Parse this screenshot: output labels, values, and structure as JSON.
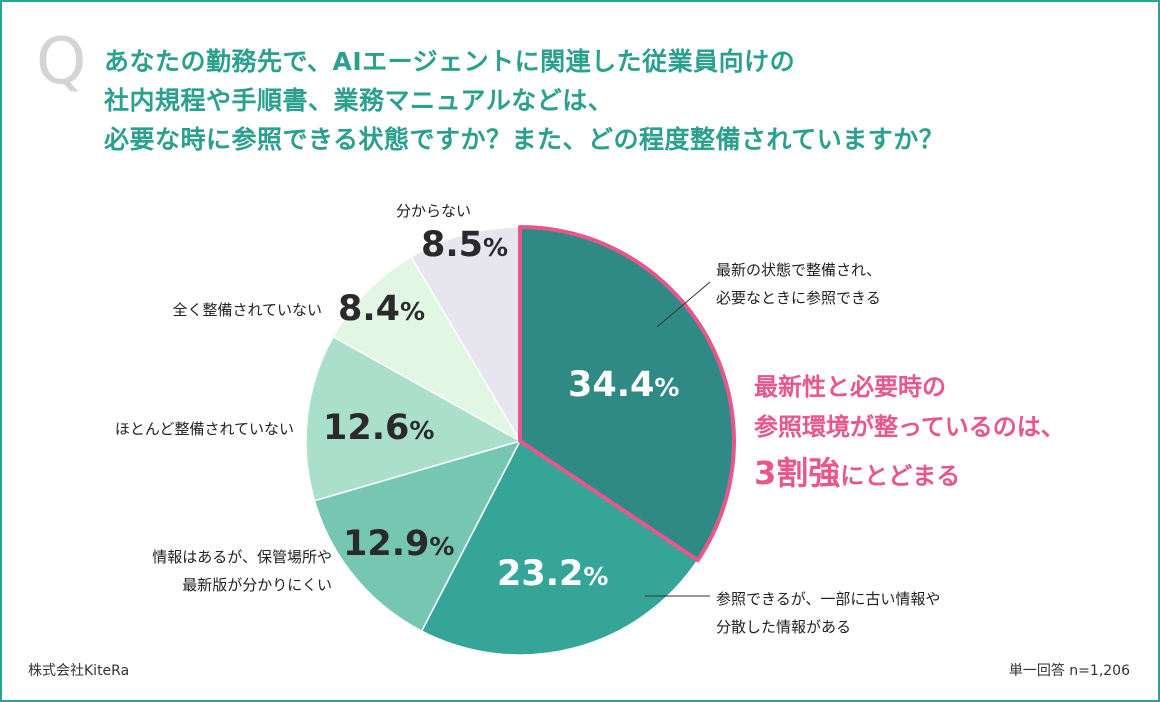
{
  "question": {
    "mark": "Q",
    "lines": [
      "あなたの勤務先で、AIエージェントに関連した従業員向けの",
      "社内規程や手順書、業務マニュアルなどは、",
      "必要な時に参照できる状態ですか？また、どの程度整備されていますか？"
    ]
  },
  "chart_data": {
    "type": "pie",
    "start": "top",
    "direction": "clockwise",
    "slices": [
      {
        "label_lines": [
          "最新の状態で整備され、",
          "必要なときに参照できる"
        ],
        "value": 34.4,
        "color": "#2f8a85",
        "highlighted": true
      },
      {
        "label_lines": [
          "参照できるが、一部に古い情報や",
          "分散した情報がある"
        ],
        "value": 23.2,
        "color": "#34a597"
      },
      {
        "label_lines": [
          "情報はあるが、保管場所や",
          "最新版が分かりにくい"
        ],
        "value": 12.9,
        "color": "#76c7b1"
      },
      {
        "label_lines": [
          "ほとんど整備されていない"
        ],
        "value": 12.6,
        "color": "#aadfcc"
      },
      {
        "label_lines": [
          "全く整備されていない"
        ],
        "value": 8.4,
        "color": "#e2f6e4"
      },
      {
        "label_lines": [
          "分からない"
        ],
        "value": 8.5,
        "color": "#e7e6ee"
      }
    ],
    "value_unit": "%",
    "highlight_border_color": "#e8578c"
  },
  "highlight_text": {
    "line1": "最新性と必要時の",
    "line2": "参照環境が整っているのは、",
    "line3_big": "3割強",
    "line3_small": "にとどまる",
    "color": "#e8578c"
  },
  "footer": {
    "source": "株式会社KiteRa",
    "sample": "単一回答 n=1,206"
  },
  "colors": {
    "frame": "#2aa394",
    "title": "#2ba08f"
  }
}
